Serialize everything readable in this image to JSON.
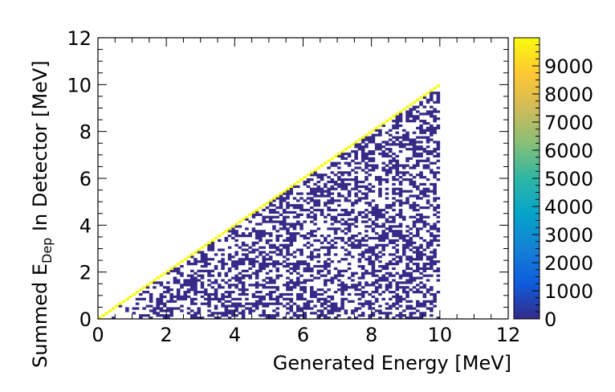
{
  "chart_data": {
    "type": "heatmap",
    "title": "",
    "xlabel": "Generated Energy [MeV]",
    "ylabel_main": "Summed E",
    "ylabel_sub": "Dep",
    "ylabel_tail": " In Detector [MeV]",
    "xlim": [
      0,
      12
    ],
    "ylim": [
      0,
      12
    ],
    "x_ticks": [
      "0",
      "2",
      "4",
      "6",
      "8",
      "10",
      "12"
    ],
    "y_ticks": [
      "0",
      "2",
      "4",
      "6",
      "8",
      "10",
      "12"
    ],
    "bins": {
      "x_bin_width": 0.1,
      "y_bin_width": 0.1,
      "x_max_filled": 10.0
    },
    "fill_pattern": {
      "region": "triangle below diagonal y = x, for x in [0, 10]",
      "sparse_bin_value": 1,
      "sparse_occupancy": 0.45,
      "diagonal_value": 10000
    },
    "colorbar": {
      "min": 0,
      "max": 10000,
      "tick_labels": [
        "0",
        "1000",
        "2000",
        "3000",
        "4000",
        "5000",
        "6000",
        "7000",
        "8000",
        "9000"
      ],
      "tick_values": [
        0,
        1000,
        2000,
        3000,
        4000,
        5000,
        6000,
        7000,
        8000,
        9000
      ],
      "colors": [
        "#352a87",
        "#0f5cdd",
        "#1481d6",
        "#06a4ca",
        "#2eb7a4",
        "#87bf77",
        "#d1bb59",
        "#fec832",
        "#f9fb0e"
      ]
    },
    "grid": false
  }
}
